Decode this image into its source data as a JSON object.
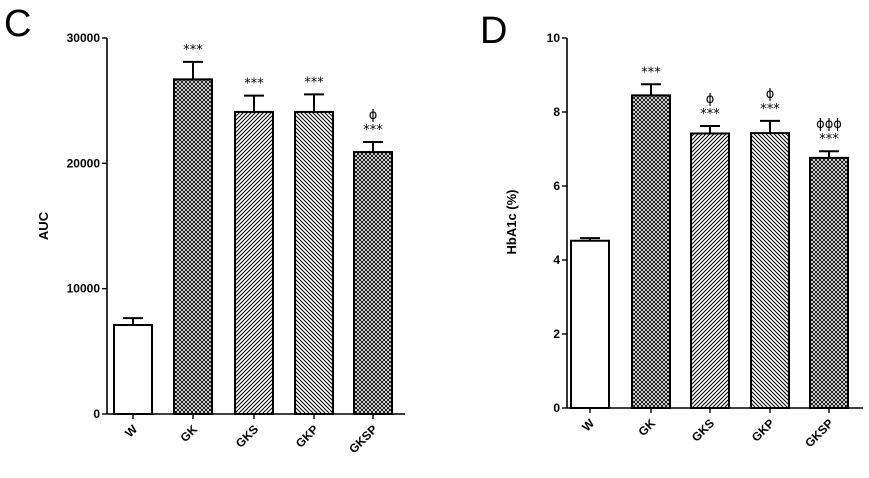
{
  "chart_data": [
    {
      "type": "bar",
      "panel": "C",
      "categories": [
        "W",
        "GK",
        "GKS",
        "GKP",
        "GKSP"
      ],
      "values": [
        7100,
        26700,
        24100,
        24100,
        20900
      ],
      "errors": [
        550,
        1400,
        1300,
        1400,
        800
      ],
      "patterns": [
        "none",
        "crosshatch",
        "diagonal-right",
        "diagonal-left",
        "crosshatch"
      ],
      "annotations": [
        [],
        [
          "***"
        ],
        [
          "***"
        ],
        [
          "***"
        ],
        [
          "ϕ",
          "***"
        ]
      ],
      "title": "",
      "xlabel": "",
      "ylabel": "AUC",
      "ylim": [
        0,
        30000
      ],
      "yticks": [
        0,
        10000,
        20000,
        30000
      ],
      "grid": false
    },
    {
      "type": "bar",
      "panel": "D",
      "categories": [
        "W",
        "GK",
        "GKS",
        "GKP",
        "GKSP"
      ],
      "values": [
        4.52,
        8.45,
        7.42,
        7.43,
        6.76
      ],
      "errors": [
        0.07,
        0.3,
        0.2,
        0.33,
        0.18
      ],
      "patterns": [
        "none",
        "crosshatch",
        "diagonal-right",
        "diagonal-left",
        "crosshatch"
      ],
      "annotations": [
        [],
        [
          "***"
        ],
        [
          "ϕ",
          "***"
        ],
        [
          "ϕ",
          "***"
        ],
        [
          "ϕϕϕ",
          "***"
        ]
      ],
      "title": "",
      "xlabel": "",
      "ylabel": "HbA1c (%)",
      "ylim": [
        0,
        10
      ],
      "yticks": [
        0,
        2,
        4,
        6,
        8,
        10
      ],
      "grid": false
    }
  ]
}
